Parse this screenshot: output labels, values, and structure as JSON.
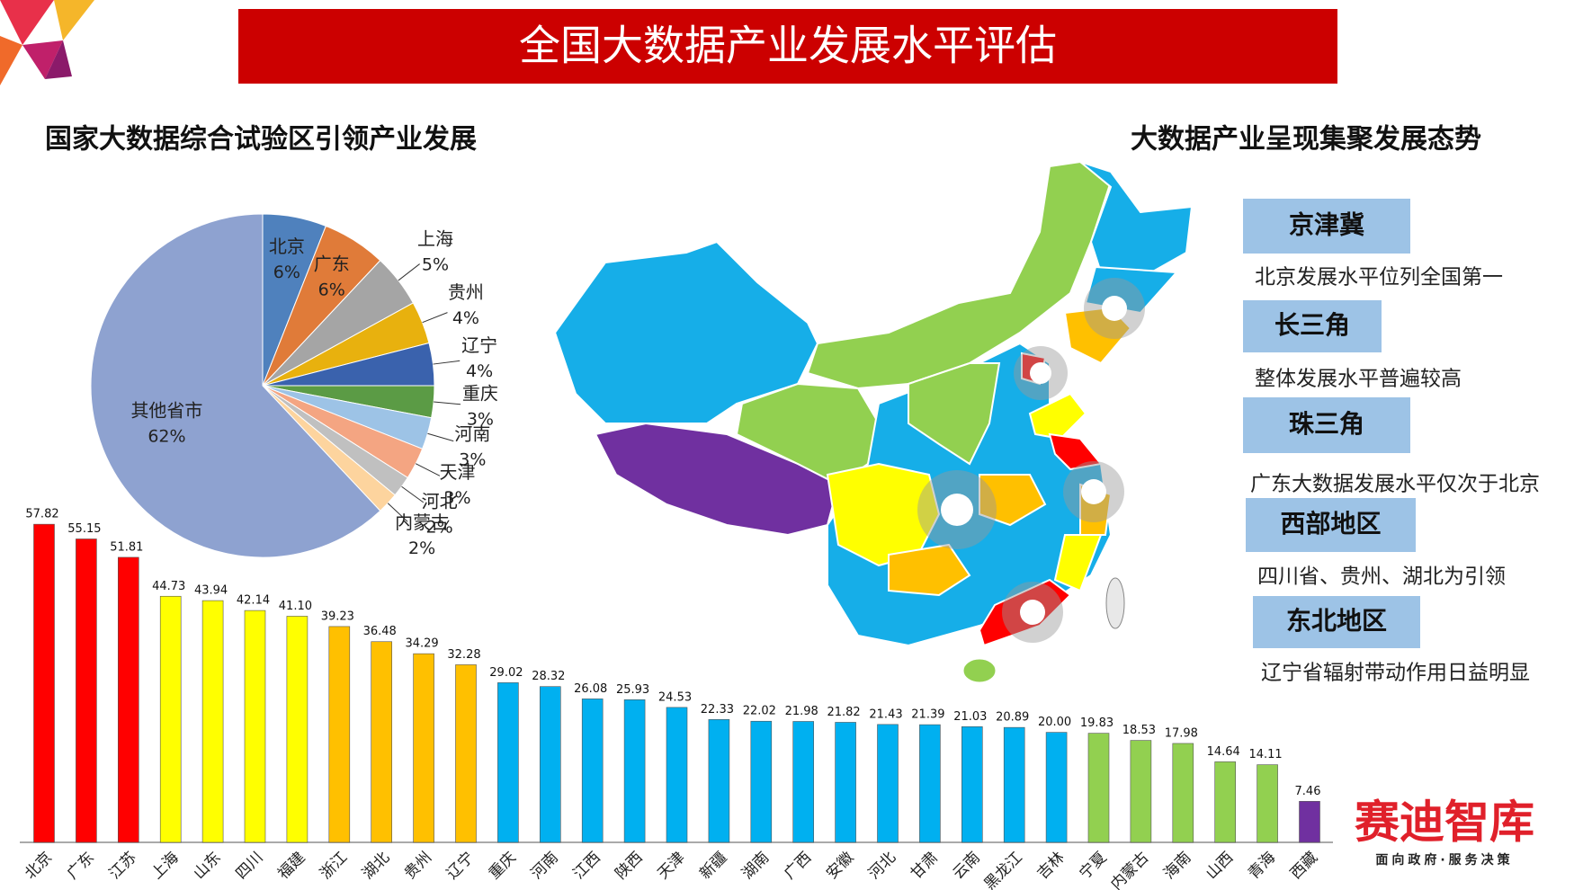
{
  "title": "全国大数据产业发展水平评估",
  "chart_data": [
    {
      "type": "pie",
      "title": "国家大数据综合试验区引领产业发展",
      "categories": [
        "北京",
        "广东",
        "上海",
        "贵州",
        "辽宁",
        "重庆",
        "河南",
        "天津",
        "河北",
        "内蒙古",
        "其他省市"
      ],
      "values": [
        6,
        6,
        5,
        4,
        4,
        3,
        3,
        3,
        2,
        2,
        62
      ],
      "value_labels": [
        "6%",
        "6%",
        "5%",
        "4%",
        "4%",
        "3%",
        "3%",
        "3%",
        "2%",
        "2%",
        "62%"
      ],
      "colors": [
        "#4f81bd",
        "#e07b39",
        "#a5a5a5",
        "#e8b10e",
        "#3a62ad",
        "#5b9b45",
        "#9dc3e6",
        "#f4a582",
        "#c0c0c0",
        "#fdd49e",
        "#8ea2d0"
      ]
    },
    {
      "type": "bar",
      "categories": [
        "北京",
        "广东",
        "江苏",
        "上海",
        "山东",
        "四川",
        "福建",
        "浙江",
        "湖北",
        "贵州",
        "辽宁",
        "重庆",
        "河南",
        "江西",
        "陕西",
        "天津",
        "新疆",
        "湖南",
        "广西",
        "安徽",
        "河北",
        "甘肃",
        "云南",
        "黑龙江",
        "吉林",
        "宁夏",
        "内蒙古",
        "海南",
        "山西",
        "青海",
        "西藏"
      ],
      "values": [
        57.82,
        55.15,
        51.81,
        44.73,
        43.94,
        42.14,
        41.1,
        39.23,
        36.48,
        34.29,
        32.28,
        29.02,
        28.32,
        26.08,
        25.93,
        24.53,
        22.33,
        22.02,
        21.98,
        21.82,
        21.43,
        21.39,
        21.03,
        20.89,
        20.0,
        19.83,
        18.53,
        17.98,
        14.64,
        14.11,
        7.46
      ],
      "value_labels": [
        "57.82",
        "55.15",
        "51.81",
        "44.73",
        "43.94",
        "42.14",
        "41.10",
        "39.23",
        "36.48",
        "34.29",
        "32.28",
        "29.02",
        "28.32",
        "26.08",
        "25.93",
        "24.53",
        "22.33",
        "22.02",
        "21.98",
        "21.82",
        "21.43",
        "21.39",
        "21.03",
        "20.89",
        "20.00",
        "19.83",
        "18.53",
        "17.98",
        "14.64",
        "14.11",
        "7.46"
      ],
      "colors": [
        "#ff0000",
        "#ff0000",
        "#ff0000",
        "#ffff00",
        "#ffff00",
        "#ffff00",
        "#ffff00",
        "#ffc000",
        "#ffc000",
        "#ffc000",
        "#ffc000",
        "#00b0f0",
        "#00b0f0",
        "#00b0f0",
        "#00b0f0",
        "#00b0f0",
        "#00b0f0",
        "#00b0f0",
        "#00b0f0",
        "#00b0f0",
        "#00b0f0",
        "#00b0f0",
        "#00b0f0",
        "#00b0f0",
        "#00b0f0",
        "#92d050",
        "#92d050",
        "#92d050",
        "#92d050",
        "#92d050",
        "#7030a0"
      ]
    }
  ],
  "map": {
    "title": "大数据产业呈现集聚发展态势",
    "regions": [
      {
        "name": "京津冀",
        "note": "北京发展水平位列全国第一"
      },
      {
        "name": "长三角",
        "note": "整体发展水平普遍较高"
      },
      {
        "name": "珠三角",
        "note": "广东大数据发展水平仅次于北京"
      },
      {
        "name": "西部地区",
        "note": "四川省、贵州、湖北为引领"
      },
      {
        "name": "东北地区",
        "note": "辽宁省辐射带动作用日益明显"
      }
    ]
  },
  "logo": {
    "name": "赛迪智库",
    "slogan": "面向政府·服务决策"
  }
}
